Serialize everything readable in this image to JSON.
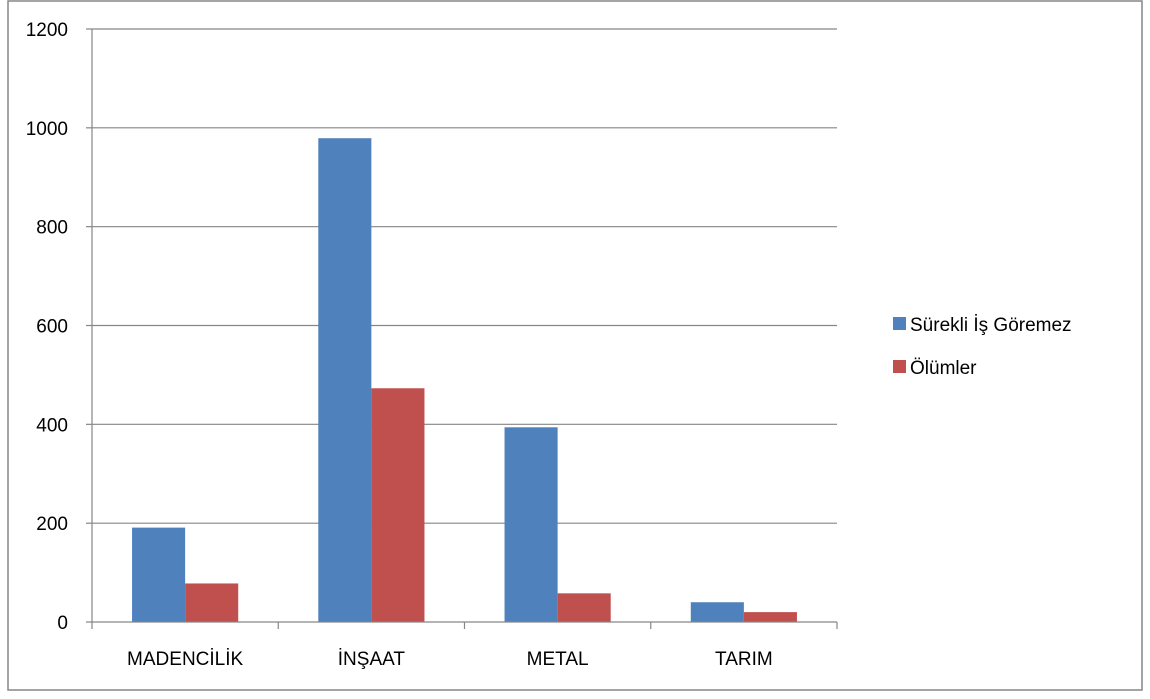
{
  "chart_data": {
    "type": "bar",
    "categories": [
      "MADENCİLİK",
      "İNŞAAT",
      "METAL",
      "TARIM"
    ],
    "series": [
      {
        "name": "Sürekli İş Göremez",
        "values": [
          191,
          979,
          394,
          40
        ],
        "color": "#4F81BD"
      },
      {
        "name": "Ölümler",
        "values": [
          78,
          473,
          58,
          20
        ],
        "color": "#C0504D"
      }
    ],
    "title": "",
    "xlabel": "",
    "ylabel": "",
    "ylim": [
      0,
      1200
    ],
    "yticks": [
      0,
      200,
      400,
      600,
      800,
      1000,
      1200
    ],
    "grid": true,
    "legend": "right"
  }
}
